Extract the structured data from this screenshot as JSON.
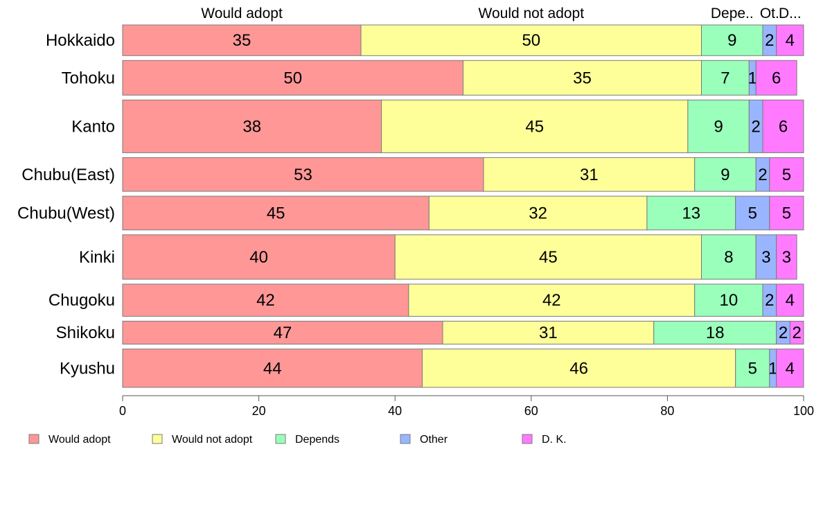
{
  "chart_data": {
    "type": "bar",
    "orientation": "horizontal",
    "stacked": true,
    "percent_scale": true,
    "categories": [
      "Hokkaido",
      "Tohoku",
      "Kanto",
      "Chubu(East)",
      "Chubu(West)",
      "Kinki",
      "Chugoku",
      "Shikoku",
      "Kyushu"
    ],
    "series": [
      {
        "name": "Would adopt",
        "color": "#ff9797",
        "values": [
          35,
          50,
          38,
          53,
          45,
          40,
          42,
          47,
          44
        ]
      },
      {
        "name": "Would not adopt",
        "color": "#ffff99",
        "values": [
          50,
          35,
          45,
          31,
          32,
          45,
          42,
          31,
          46
        ]
      },
      {
        "name": "Depends",
        "color": "#99ffbb",
        "values": [
          9,
          7,
          9,
          9,
          13,
          8,
          10,
          18,
          5
        ]
      },
      {
        "name": "Other",
        "color": "#99b5ff",
        "values": [
          2,
          1,
          2,
          2,
          5,
          3,
          2,
          2,
          1
        ]
      },
      {
        "name": "D. K.",
        "color": "#ff7aff",
        "values": [
          4,
          6,
          6,
          5,
          5,
          3,
          4,
          2,
          4
        ]
      }
    ],
    "column_headers": [
      "Would adopt",
      "Would not adopt",
      "Depe..",
      "Ot.",
      "D..."
    ],
    "xlim": [
      0,
      100
    ],
    "xticks": [
      0,
      20,
      40,
      60,
      80,
      100
    ],
    "row_weights": [
      1.0,
      1.13,
      1.72,
      1.1,
      1.1,
      1.45,
      1.05,
      0.75,
      1.25
    ],
    "legend_position": "bottom-left",
    "grid": false
  }
}
